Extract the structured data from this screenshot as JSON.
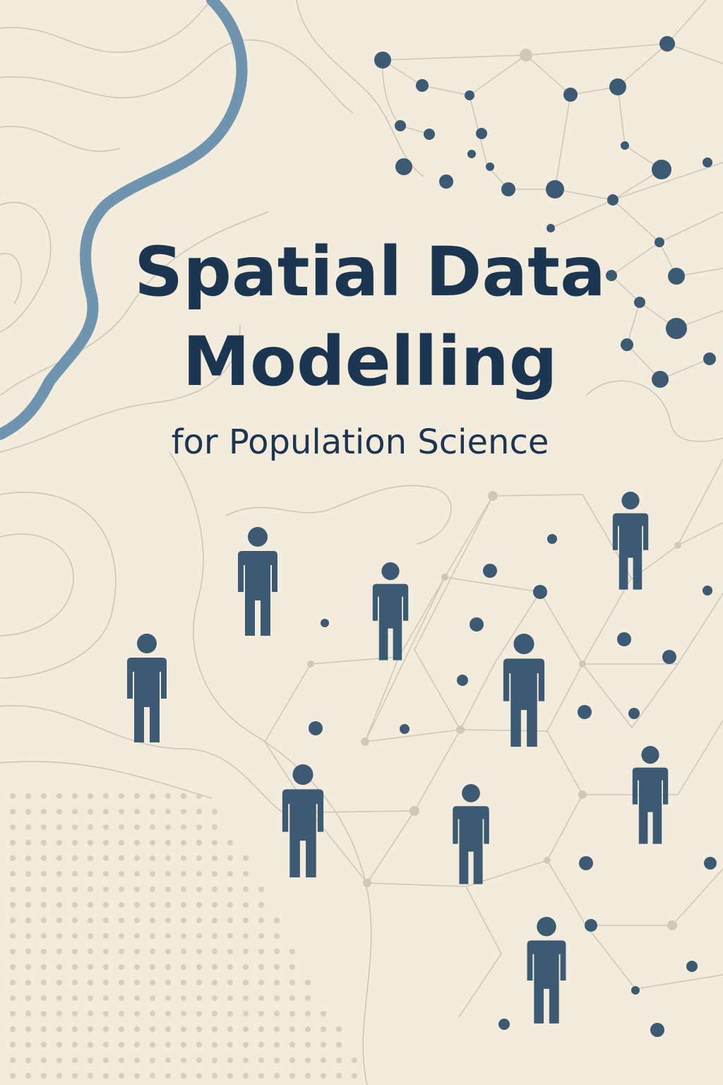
{
  "cover": {
    "title": [
      "Spatial Data",
      "Modelling"
    ],
    "subtitle": "for Population Science"
  }
}
